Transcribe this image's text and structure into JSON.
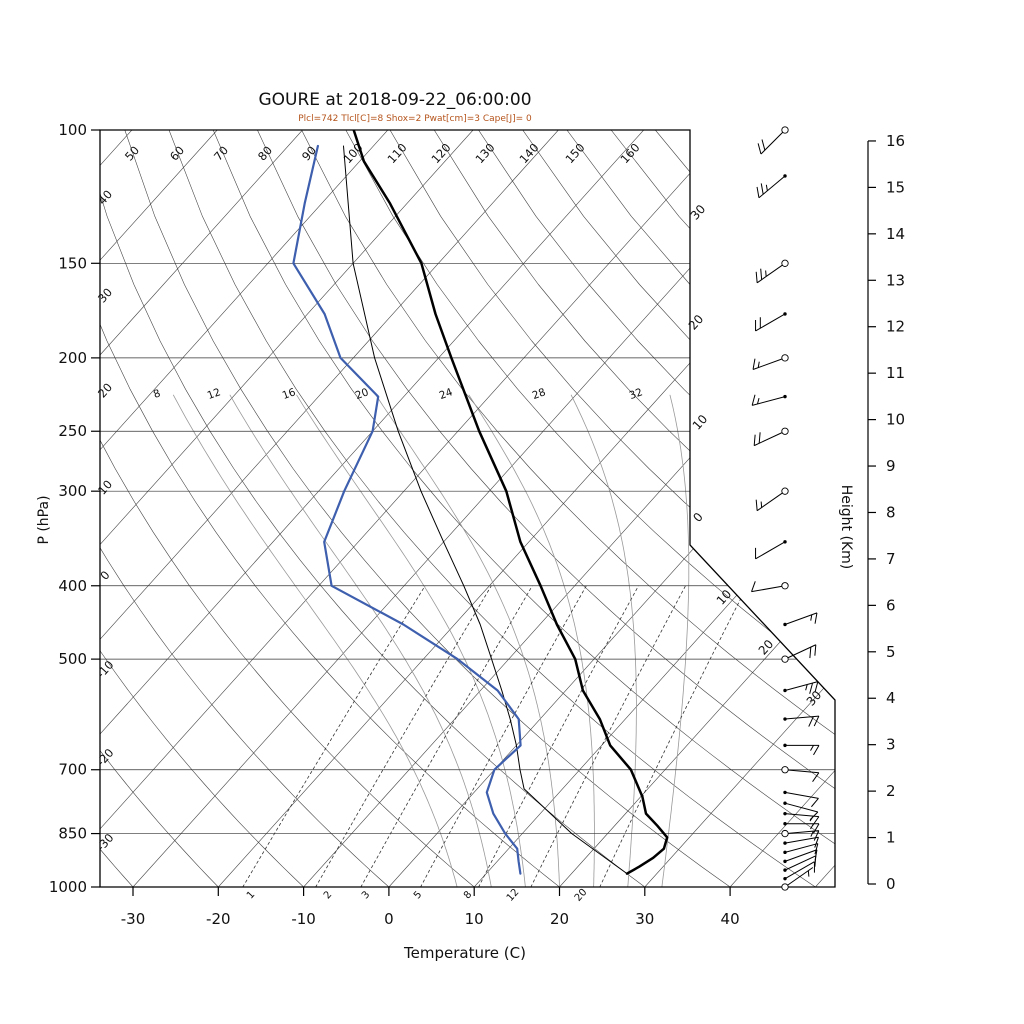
{
  "title": "GOURE at 2018-09-22_06:00:00",
  "subtitle": "Plcl=742 Tlcl[C]=8 Shox=2 Pwat[cm]=3 Cape[J]= 0",
  "colors": {
    "temperature": "#000000",
    "dewpoint": "#3e5fae",
    "parcel": "#000000",
    "subtitle": "#b5541c",
    "grid": "#444444",
    "moist_adiabat": "#999999"
  },
  "chart_data": {
    "type": "line",
    "title": "GOURE at 2018-09-22_06:00:00",
    "subtitle": "Plcl=742 Tlcl[C]=8 Shox=2 Pwat[cm]=3 Cape[J]= 0",
    "x_axis": {
      "label": "Temperature (C)",
      "ticks": [
        -30,
        -20,
        -10,
        0,
        10,
        20,
        30,
        40
      ]
    },
    "y_axis": {
      "label": "P (hPa)",
      "scale": "log",
      "ticks": [
        100,
        150,
        200,
        250,
        300,
        400,
        500,
        700,
        850,
        1000
      ]
    },
    "y2_axis": {
      "label": "Height (Km)",
      "ticks": [
        0,
        1,
        2,
        3,
        4,
        5,
        6,
        7,
        8,
        9,
        10,
        11,
        12,
        13,
        14,
        15,
        16
      ]
    },
    "series": [
      {
        "name": "temperature",
        "color": "#000000",
        "points": [
          [
            960,
            26.5
          ],
          [
            940,
            27.2
          ],
          [
            915,
            27.9
          ],
          [
            890,
            28.2
          ],
          [
            860,
            27.4
          ],
          [
            830,
            25.0
          ],
          [
            800,
            22.4
          ],
          [
            760,
            20.2
          ],
          [
            700,
            16.0
          ],
          [
            650,
            11.0
          ],
          [
            600,
            7.0
          ],
          [
            550,
            2.0
          ],
          [
            500,
            -2.2
          ],
          [
            450,
            -8.0
          ],
          [
            400,
            -14.0
          ],
          [
            350,
            -21.0
          ],
          [
            300,
            -28.0
          ],
          [
            250,
            -37.5
          ],
          [
            200,
            -48.5
          ],
          [
            175,
            -55.0
          ],
          [
            150,
            -62.0
          ],
          [
            125,
            -72.0
          ],
          [
            110,
            -79.5
          ],
          [
            100,
            -84.0
          ]
        ]
      },
      {
        "name": "dewpoint",
        "color": "#3e5fae",
        "points": [
          [
            960,
            14.0
          ],
          [
            925,
            12.5
          ],
          [
            890,
            11.0
          ],
          [
            850,
            8.0
          ],
          [
            800,
            4.5
          ],
          [
            750,
            1.5
          ],
          [
            700,
            0.0
          ],
          [
            650,
            0.5
          ],
          [
            600,
            -2.5
          ],
          [
            550,
            -8.0
          ],
          [
            500,
            -16.0
          ],
          [
            450,
            -26.0
          ],
          [
            400,
            -38.5
          ],
          [
            350,
            -44.0
          ],
          [
            300,
            -47.0
          ],
          [
            250,
            -50.0
          ],
          [
            225,
            -53.0
          ],
          [
            200,
            -61.5
          ],
          [
            175,
            -68.0
          ],
          [
            150,
            -77.0
          ],
          [
            125,
            -82.0
          ],
          [
            105,
            -86.5
          ]
        ]
      },
      {
        "name": "parcel",
        "color": "#000000",
        "points": [
          [
            960,
            26.5
          ],
          [
            850,
            15.8
          ],
          [
            742,
            5.5
          ],
          [
            700,
            3.0
          ],
          [
            650,
            0.0
          ],
          [
            600,
            -3.5
          ],
          [
            550,
            -7.5
          ],
          [
            500,
            -12.0
          ],
          [
            450,
            -17.0
          ],
          [
            400,
            -23.0
          ],
          [
            350,
            -30.0
          ],
          [
            300,
            -38.0
          ],
          [
            250,
            -47.0
          ],
          [
            200,
            -57.5
          ],
          [
            150,
            -70.0
          ],
          [
            105,
            -83.5
          ]
        ]
      }
    ],
    "winds": {
      "units": "kt",
      "levels": [
        [
          100,
          225,
          20
        ],
        [
          115,
          230,
          25
        ],
        [
          150,
          235,
          25
        ],
        [
          175,
          240,
          20
        ],
        [
          200,
          250,
          15
        ],
        [
          225,
          255,
          15
        ],
        [
          250,
          245,
          20
        ],
        [
          300,
          235,
          15
        ],
        [
          350,
          240,
          10
        ],
        [
          400,
          260,
          10
        ],
        [
          450,
          70,
          15
        ],
        [
          500,
          65,
          20
        ],
        [
          550,
          75,
          25
        ],
        [
          600,
          85,
          20
        ],
        [
          650,
          90,
          15
        ],
        [
          700,
          95,
          10
        ],
        [
          750,
          100,
          10
        ],
        [
          775,
          105,
          10
        ],
        [
          800,
          95,
          15
        ],
        [
          825,
          90,
          15
        ],
        [
          850,
          85,
          15
        ],
        [
          875,
          80,
          10
        ],
        [
          900,
          75,
          10
        ],
        [
          925,
          70,
          10
        ],
        [
          950,
          65,
          10
        ],
        [
          975,
          60,
          8
        ],
        [
          1000,
          55,
          5
        ]
      ],
      "circle_levels": [
        100,
        150,
        200,
        250,
        300,
        400,
        500,
        700,
        850,
        1000
      ]
    },
    "background": {
      "isotherms": {
        "start": -120,
        "end": 50,
        "step": 10
      },
      "dry_adiabats": {
        "top_labels": [
          "50",
          "60",
          "70",
          "80",
          "90",
          "100",
          "110",
          "120",
          "130",
          "140",
          "150",
          "160"
        ],
        "left_labels": [
          "40",
          "30",
          "20",
          "10",
          "0",
          "-10",
          "-20",
          "-30"
        ]
      },
      "moist_adiabats": {
        "labels": [
          "8",
          "12",
          "16",
          "20",
          "24",
          "28",
          "32"
        ],
        "values": [
          8,
          12,
          16,
          20,
          24,
          28,
          32
        ]
      },
      "mixing_ratio": {
        "labels": [
          "1",
          "2",
          "3",
          "5",
          "8",
          "12",
          "20"
        ],
        "values": [
          1,
          2,
          3,
          5,
          8,
          12,
          20
        ]
      },
      "isotherm_edge_labels": {
        "upper": [
          "30",
          "20",
          "10",
          "0"
        ],
        "lower": [
          "10",
          "20",
          "30"
        ]
      }
    }
  }
}
